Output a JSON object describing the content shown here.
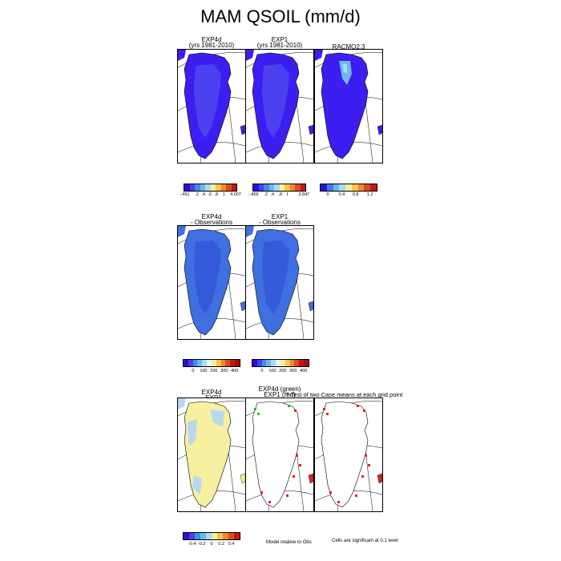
{
  "figure": {
    "title": "MAM QSOIL (mm/d)"
  },
  "row1": {
    "panels": [
      {
        "title_line1": "EXP4d",
        "title_line2": "(yrs 1981-2010)",
        "style": "dark"
      },
      {
        "title_line1": "EXP1",
        "title_line2": "(yrs 1981-2010)",
        "style": "dark"
      },
      {
        "title_line1": "RACMO2.3",
        "title_line2": "",
        "style": "racmo"
      }
    ],
    "colorbars": [
      {
        "ticks": [
          "-.451",
          ".2",
          ".4",
          ".6",
          ".8",
          "1",
          "4.007"
        ]
      },
      {
        "ticks": [
          "-.456",
          ".2",
          ".4",
          ".8",
          "1",
          "3.847"
        ]
      },
      {
        "ticks": [
          "0",
          "0.4",
          "0.8",
          "1.2"
        ]
      }
    ]
  },
  "row2": {
    "panels": [
      {
        "title_line1": "EXP4d",
        "title_line2": "- Observations"
      },
      {
        "title_line1": "EXP1",
        "title_line2": "- Observations"
      }
    ],
    "colorbars": [
      {
        "ticks": [
          "0",
          "100",
          "200",
          "300",
          "400"
        ]
      },
      {
        "ticks": [
          "0",
          "100",
          "200",
          "300",
          "400"
        ]
      }
    ]
  },
  "row3": {
    "panels": [
      {
        "title_line1": "EXP4d",
        "title_line2": "- EXP1"
      },
      {
        "title_line1": "EXP4d (green)",
        "title_line2": "EXP1 (red)"
      },
      {
        "title_line1": "",
        "title_line2": ""
      }
    ],
    "ttest_title": "T-Test of two Case means at each grid point",
    "colorbar": {
      "ticks": [
        "-0.4",
        "-0.2",
        "0",
        "0.2",
        "0.4"
      ]
    },
    "note_model": "Model relative to Obs",
    "note_cells": "Cells are significant at 0.1 level"
  },
  "colors": {
    "dark_fill": "#3c1ef0",
    "light_fill": "#5c64ee",
    "obs_fill": "#3f6fe0",
    "obs_dark": "#2f4fd6",
    "diff_fill": "#f6f0a0",
    "diff_blue": "#b8d8f0",
    "sig_red": "#dd2222",
    "sig_green": "#22bb22"
  }
}
